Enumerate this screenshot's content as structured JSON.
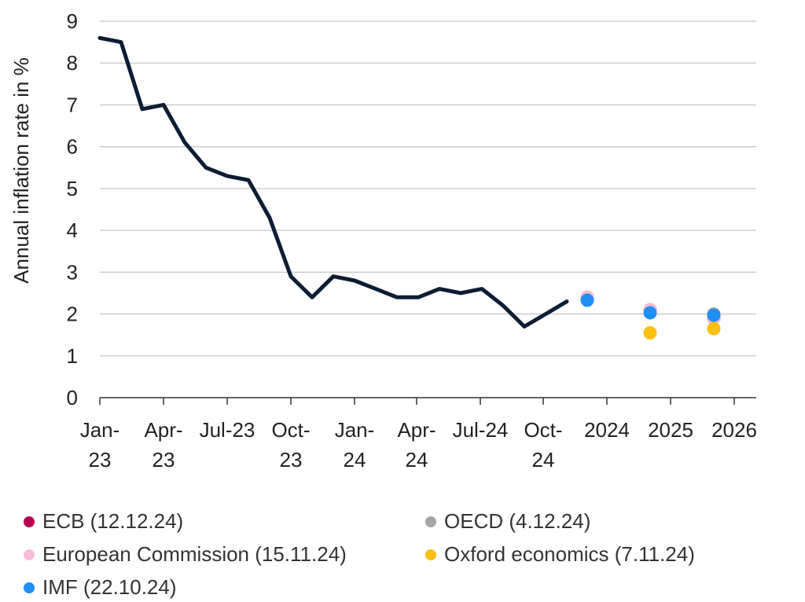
{
  "chart_data": {
    "type": "line",
    "ylabel": "Annual inflation rate in %",
    "ylim": [
      0,
      9
    ],
    "yticks": [
      "0",
      "1",
      "2",
      "3",
      "4",
      "5",
      "6",
      "7",
      "8",
      "9"
    ],
    "grid": "horizontal",
    "legend_position": "bottom",
    "x_tick_labels": [
      {
        "line1": "Jan-",
        "line2": "23"
      },
      {
        "line1": "Apr-",
        "line2": "23"
      },
      {
        "line1": "Jul-23",
        "line2": ""
      },
      {
        "line1": "Oct-",
        "line2": "23"
      },
      {
        "line1": "Jan-",
        "line2": "24"
      },
      {
        "line1": "Apr-",
        "line2": "24"
      },
      {
        "line1": "Jul-24",
        "line2": ""
      },
      {
        "line1": "Oct-",
        "line2": "24"
      },
      {
        "line1": "2024",
        "line2": ""
      },
      {
        "line1": "2025",
        "line2": ""
      },
      {
        "line1": "2026",
        "line2": ""
      }
    ],
    "actual": {
      "color": "#0c1c33",
      "x": [
        "2023-01",
        "2023-02",
        "2023-03",
        "2023-04",
        "2023-05",
        "2023-06",
        "2023-07",
        "2023-08",
        "2023-09",
        "2023-10",
        "2023-11",
        "2023-12",
        "2024-01",
        "2024-02",
        "2024-03",
        "2024-04",
        "2024-05",
        "2024-06",
        "2024-07",
        "2024-08",
        "2024-09",
        "2024-10",
        "2024-11"
      ],
      "values": [
        8.6,
        8.5,
        6.9,
        7.0,
        6.1,
        5.5,
        5.3,
        5.2,
        4.3,
        2.9,
        2.4,
        2.9,
        2.8,
        2.6,
        2.4,
        2.4,
        2.6,
        2.5,
        2.6,
        2.2,
        1.7,
        2.0,
        2.3
      ]
    },
    "forecast_years": [
      "2024",
      "2025",
      "2026"
    ],
    "series": [
      {
        "name": "ECB (12.12.24)",
        "color": "#b5004f",
        "values": [
          2.4,
          2.1,
          1.9
        ]
      },
      {
        "name": "OECD (4.12.24)",
        "color": "#a6a6a6",
        "values": [
          2.4,
          2.1,
          2.0
        ]
      },
      {
        "name": "European Commission (15.11.24)",
        "color": "#f7bcd8",
        "values": [
          2.4,
          2.1,
          1.9
        ]
      },
      {
        "name": "Oxford economics (7.11.24)",
        "color": "#fdbf12",
        "values": [
          null,
          1.55,
          1.65
        ]
      },
      {
        "name": "IMF (22.10.24)",
        "color": "#1f8ff5",
        "values": [
          2.33,
          2.03,
          1.97
        ]
      }
    ]
  }
}
